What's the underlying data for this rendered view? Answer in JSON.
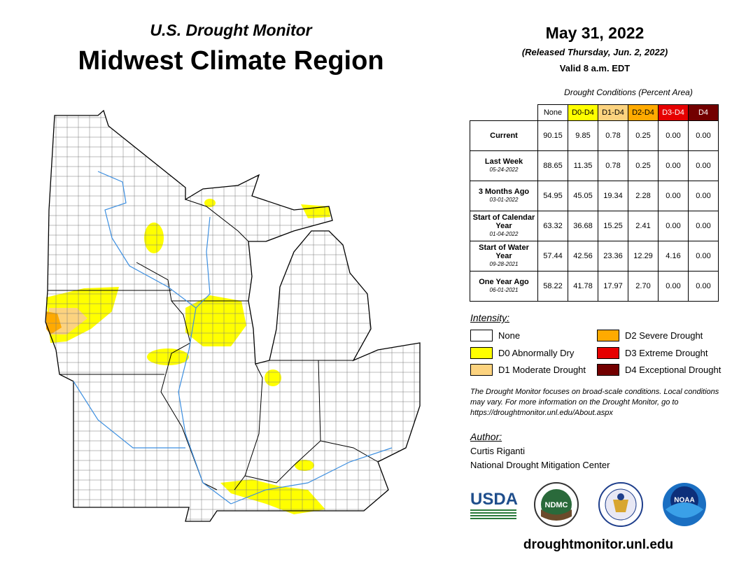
{
  "header": {
    "subtitle": "U.S. Drought Monitor",
    "title": "Midwest Climate Region"
  },
  "date": {
    "title": "May 31, 2022",
    "released": "(Released Thursday, Jun. 2, 2022)",
    "valid": "Valid 8 a.m. EDT"
  },
  "table": {
    "caption": "Drought Conditions (Percent Area)",
    "columns": [
      {
        "label": "None",
        "color": "#ffffff"
      },
      {
        "label": "D0-D4",
        "color": "#ffff00"
      },
      {
        "label": "D1-D4",
        "color": "#fcd37f"
      },
      {
        "label": "D2-D4",
        "color": "#ffaa00"
      },
      {
        "label": "D3-D4",
        "color": "#e60000"
      },
      {
        "label": "D4",
        "color": "#730000"
      }
    ],
    "rows": [
      {
        "label": "Current",
        "cells": [
          "90.15",
          "9.85",
          "0.78",
          "0.25",
          "0.00",
          "0.00"
        ]
      },
      {
        "label": "Last Week",
        "date": "05-24-2022",
        "cells": [
          "88.65",
          "11.35",
          "0.78",
          "0.25",
          "0.00",
          "0.00"
        ]
      },
      {
        "label": "3 Months Ago",
        "date": "03-01-2022",
        "cells": [
          "54.95",
          "45.05",
          "19.34",
          "2.28",
          "0.00",
          "0.00"
        ]
      },
      {
        "label": "Start of Calendar Year",
        "date": "01-04-2022",
        "cells": [
          "63.32",
          "36.68",
          "15.25",
          "2.41",
          "0.00",
          "0.00"
        ]
      },
      {
        "label": "Start of Water Year",
        "date": "09-28-2021",
        "cells": [
          "57.44",
          "42.56",
          "23.36",
          "12.29",
          "4.16",
          "0.00"
        ]
      },
      {
        "label": "One Year Ago",
        "date": "06-01-2021",
        "cells": [
          "58.22",
          "41.78",
          "17.97",
          "2.70",
          "0.00",
          "0.00"
        ]
      }
    ]
  },
  "legend": {
    "title": "Intensity:",
    "items": [
      {
        "label": "None",
        "color": "#ffffff"
      },
      {
        "label": "D0 Abnormally Dry",
        "color": "#ffff00"
      },
      {
        "label": "D1 Moderate Drought",
        "color": "#fcd37f"
      },
      {
        "label": "D2 Severe Drought",
        "color": "#ffaa00"
      },
      {
        "label": "D3 Extreme Drought",
        "color": "#e60000"
      },
      {
        "label": "D4 Exceptional Drought",
        "color": "#730000"
      }
    ]
  },
  "note": "The Drought Monitor focuses on broad-scale conditions. Local conditions may vary. For more information on the Drought Monitor, go to https://droughtmonitor.unl.edu/About.aspx",
  "author": {
    "title": "Author:",
    "name": "Curtis Riganti",
    "org": "National Drought Mitigation Center"
  },
  "logos": [
    "USDA",
    "NDMC",
    "NOAA"
  ],
  "footer": "droughtmonitor.unl.edu"
}
